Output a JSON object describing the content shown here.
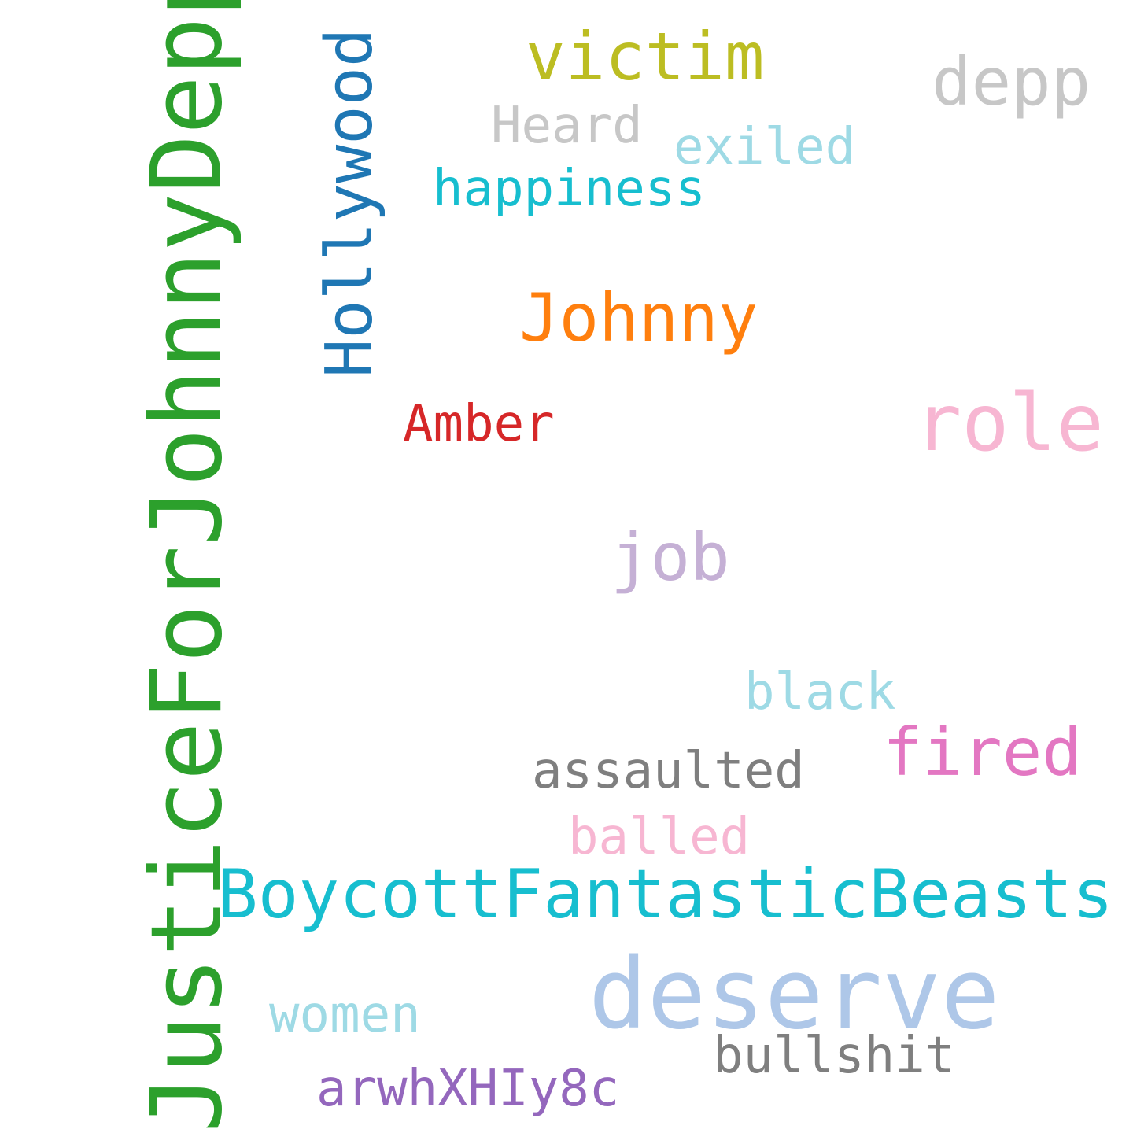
{
  "words": {
    "justice": {
      "text": "JusticeForJohnnyDepp",
      "color": "#2ca02c"
    },
    "hollywood": {
      "text": "Hollywood",
      "color": "#1f77b4"
    },
    "victim": {
      "text": "victim",
      "color": "#bcbd22"
    },
    "depp": {
      "text": "depp",
      "color": "#c7c7c7"
    },
    "heard": {
      "text": "Heard",
      "color": "#c7c7c7"
    },
    "exiled": {
      "text": "exiled",
      "color": "#9edae5"
    },
    "happiness": {
      "text": "happiness",
      "color": "#17becf"
    },
    "johnny": {
      "text": "Johnny",
      "color": "#ff7f0e"
    },
    "amber": {
      "text": "Amber",
      "color": "#d62728"
    },
    "role": {
      "text": "role",
      "color": "#f7b6d2"
    },
    "job": {
      "text": "job",
      "color": "#c5b0d5"
    },
    "black": {
      "text": "black",
      "color": "#9edae5"
    },
    "fired": {
      "text": "fired",
      "color": "#e377c2"
    },
    "assaulted": {
      "text": "assaulted",
      "color": "#7f7f7f"
    },
    "balled": {
      "text": "balled",
      "color": "#f7b6d2"
    },
    "boycott": {
      "text": "BoycottFantasticBeasts",
      "color": "#17becf"
    },
    "deserve": {
      "text": "deserve",
      "color": "#aec7e8"
    },
    "women": {
      "text": "women",
      "color": "#9edae5"
    },
    "bullshit": {
      "text": "bullshit",
      "color": "#7f7f7f"
    },
    "arwh": {
      "text": "arwhXHIy8c",
      "color": "#9467bd"
    }
  }
}
